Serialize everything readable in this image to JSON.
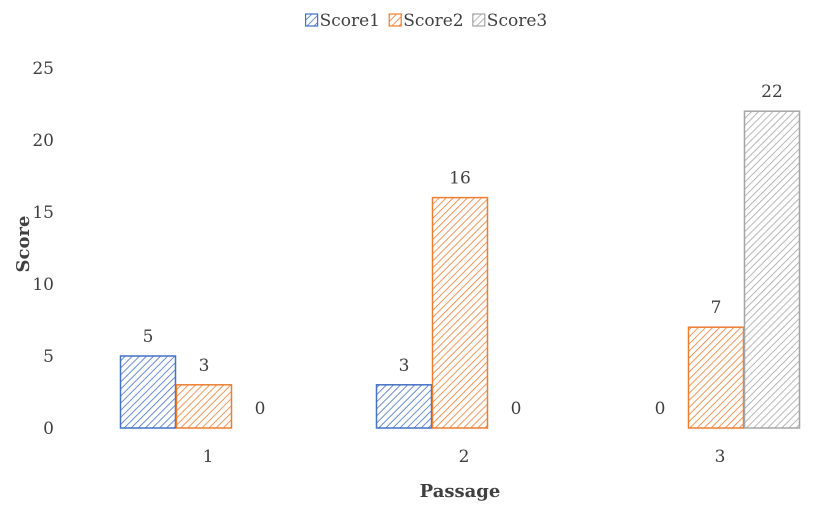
{
  "chart_data": {
    "type": "bar",
    "categories": [
      "1",
      "2",
      "3"
    ],
    "series": [
      {
        "name": "Score1",
        "values": [
          5,
          3,
          0
        ],
        "color": "#4472C4"
      },
      {
        "name": "Score2",
        "values": [
          3,
          16,
          7
        ],
        "color": "#ED7D31"
      },
      {
        "name": "Score3",
        "values": [
          0,
          0,
          22
        ],
        "color": "#A5A5A5"
      }
    ],
    "xlabel": "Passage",
    "ylabel": "Score",
    "ylim": [
      0,
      25
    ],
    "yticks": [
      "0",
      "5",
      "10",
      "15",
      "20",
      "25"
    ],
    "data_labels": true,
    "bar_fill": "diagonal-hatch",
    "grid": false,
    "legend_position": "top-center"
  }
}
